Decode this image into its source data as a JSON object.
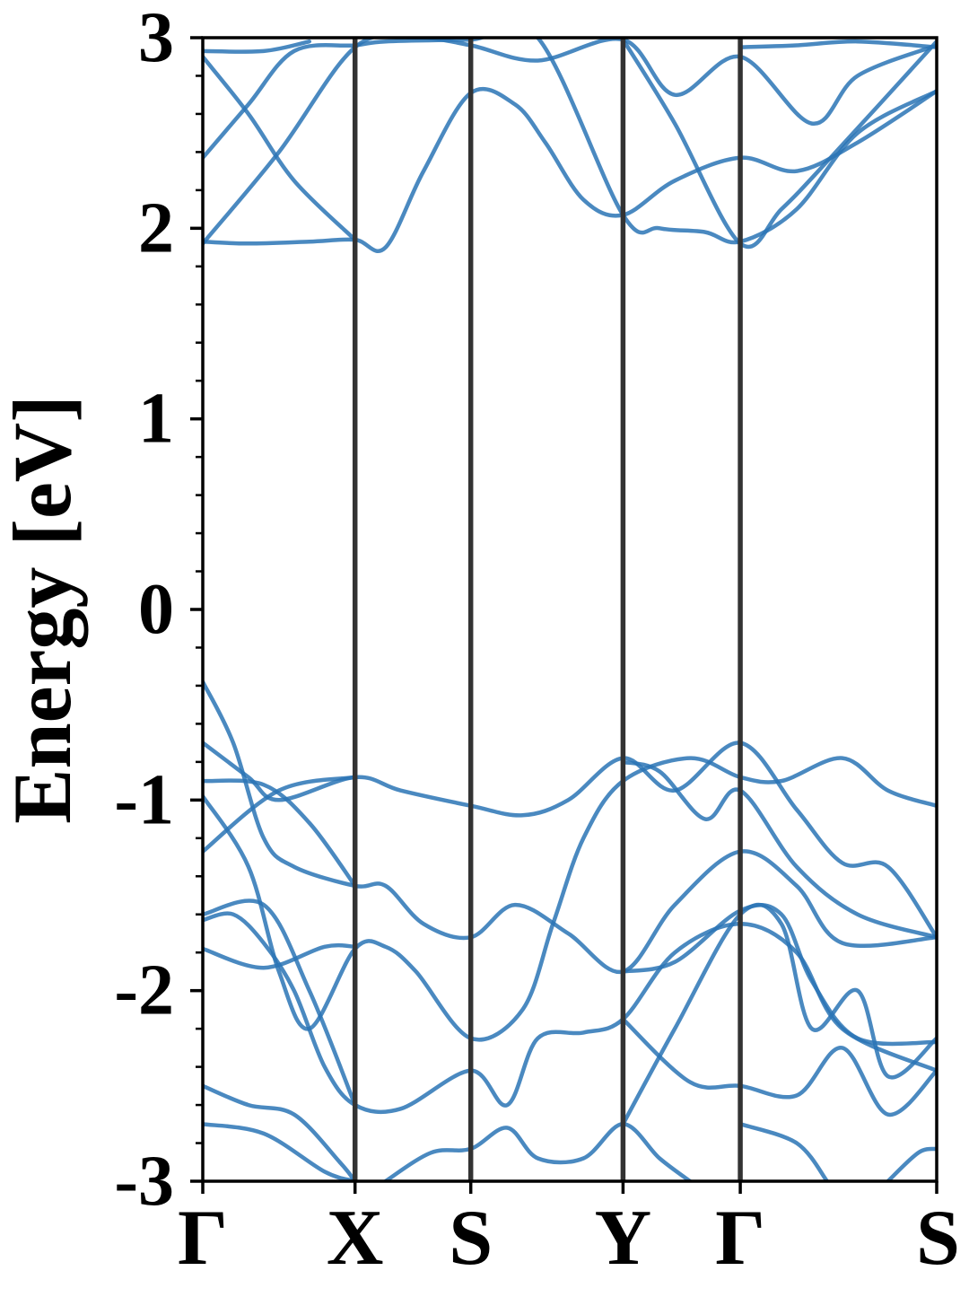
{
  "colors": {
    "band_line": "#2a74b5",
    "kpoint_line": "#333333",
    "axes": "#000000"
  },
  "chart_data": {
    "type": "line",
    "title": "",
    "xlabel": "",
    "ylabel": "Energy [eV]",
    "ylim": [
      -3,
      3
    ],
    "yticks": [
      -3,
      -2,
      -1,
      0,
      1,
      2,
      3
    ],
    "ytick_labels": [
      "-3",
      "-2",
      "-1",
      "0",
      "1",
      "2",
      "3"
    ],
    "minor_yticks_per_major": 5,
    "grid": false,
    "legend": "none",
    "x_unit": "k-path distance (Γ = 0, end S = 4.82)",
    "kpoints": [
      {
        "label": "Γ",
        "x": 0.0
      },
      {
        "label": "X",
        "x": 1.0
      },
      {
        "label": "S",
        "x": 1.76
      },
      {
        "label": "Y",
        "x": 2.76
      },
      {
        "label": "Γ",
        "x": 3.53
      },
      {
        "label": "S",
        "x": 4.82
      }
    ],
    "series": [
      {
        "values": [
          [
            0.0,
            1.93
          ],
          [
            0.3,
            1.92
          ],
          [
            0.7,
            1.93
          ],
          [
            1.0,
            1.94
          ],
          [
            1.2,
            1.9
          ],
          [
            1.45,
            2.3
          ],
          [
            1.76,
            2.71
          ],
          [
            2.05,
            2.65
          ],
          [
            2.25,
            2.45
          ],
          [
            2.5,
            2.15
          ],
          [
            2.76,
            2.07
          ],
          [
            3.1,
            2.25
          ],
          [
            3.53,
            2.37
          ],
          [
            3.9,
            2.3
          ],
          [
            4.3,
            2.45
          ],
          [
            4.82,
            2.72
          ]
        ]
      },
      {
        "values": [
          [
            0.0,
            1.92
          ],
          [
            0.5,
            2.4
          ],
          [
            1.0,
            2.95
          ],
          [
            1.4,
            3.0
          ],
          [
            1.76,
            2.96
          ],
          [
            2.2,
            2.88
          ],
          [
            2.76,
            2.99
          ],
          [
            3.1,
            2.7
          ],
          [
            3.53,
            2.9
          ],
          [
            4.0,
            2.55
          ],
          [
            4.3,
            2.8
          ],
          [
            4.82,
            2.96
          ]
        ]
      },
      {
        "values": [
          [
            0.0,
            2.37
          ],
          [
            0.3,
            2.65
          ],
          [
            0.6,
            2.93
          ],
          [
            1.0,
            2.96
          ],
          [
            1.2,
            2.98
          ],
          [
            1.76,
            2.99
          ],
          [
            2.2,
            3.0
          ],
          [
            2.76,
            2.07
          ],
          [
            3.0,
            2.0
          ],
          [
            3.3,
            1.98
          ],
          [
            3.53,
            1.93
          ],
          [
            3.9,
            2.1
          ],
          [
            4.3,
            2.5
          ],
          [
            4.82,
            2.72
          ]
        ]
      },
      {
        "values": [
          [
            0.0,
            2.9
          ],
          [
            0.3,
            2.6
          ],
          [
            0.6,
            2.25
          ],
          [
            1.0,
            1.94
          ]
        ]
      },
      {
        "values": [
          [
            0.0,
            2.93
          ],
          [
            0.4,
            2.93
          ],
          [
            0.7,
            2.98
          ]
        ]
      },
      {
        "values": [
          [
            2.76,
            2.99
          ],
          [
            3.1,
            2.55
          ],
          [
            3.53,
            1.92
          ],
          [
            3.8,
            2.1
          ],
          [
            4.1,
            2.35
          ],
          [
            4.82,
            2.98
          ]
        ]
      },
      {
        "values": [
          [
            3.53,
            2.95
          ],
          [
            3.9,
            2.96
          ],
          [
            4.3,
            2.98
          ],
          [
            4.82,
            2.95
          ]
        ]
      },
      {
        "values": [
          [
            0.0,
            -0.38
          ],
          [
            0.2,
            -0.7
          ],
          [
            0.4,
            -1.2
          ],
          [
            0.6,
            -1.35
          ],
          [
            1.0,
            -1.45
          ],
          [
            1.2,
            -1.45
          ],
          [
            1.45,
            -1.65
          ],
          [
            1.76,
            -1.72
          ],
          [
            2.05,
            -1.55
          ],
          [
            2.4,
            -1.7
          ],
          [
            2.76,
            -1.9
          ],
          [
            3.1,
            -1.55
          ],
          [
            3.53,
            -1.27
          ],
          [
            3.9,
            -1.45
          ],
          [
            4.2,
            -1.75
          ],
          [
            4.82,
            -1.72
          ]
        ]
      },
      {
        "values": [
          [
            0.0,
            -0.7
          ],
          [
            0.3,
            -0.88
          ],
          [
            0.5,
            -1.0
          ],
          [
            1.0,
            -0.88
          ],
          [
            1.3,
            -0.95
          ],
          [
            1.76,
            -1.03
          ],
          [
            2.1,
            -1.08
          ],
          [
            2.4,
            -1.0
          ],
          [
            2.76,
            -0.78
          ],
          [
            3.1,
            -0.95
          ],
          [
            3.53,
            -0.7
          ],
          [
            3.9,
            -1.05
          ],
          [
            4.2,
            -1.33
          ],
          [
            4.5,
            -1.35
          ],
          [
            4.82,
            -1.72
          ]
        ]
      },
      {
        "values": [
          [
            0.0,
            -0.9
          ],
          [
            0.4,
            -0.92
          ],
          [
            0.7,
            -1.12
          ],
          [
            1.0,
            -1.45
          ]
        ]
      },
      {
        "values": [
          [
            0.0,
            -1.27
          ],
          [
            0.5,
            -0.95
          ],
          [
            1.0,
            -0.88
          ]
        ]
      },
      {
        "values": [
          [
            0.0,
            -0.98
          ],
          [
            0.3,
            -1.35
          ],
          [
            0.5,
            -1.9
          ],
          [
            0.7,
            -2.2
          ],
          [
            1.0,
            -1.78
          ],
          [
            1.2,
            -1.77
          ],
          [
            1.4,
            -1.9
          ],
          [
            1.76,
            -2.25
          ],
          [
            2.1,
            -2.1
          ],
          [
            2.3,
            -1.65
          ],
          [
            2.5,
            -1.2
          ],
          [
            2.76,
            -0.9
          ],
          [
            3.2,
            -0.78
          ],
          [
            3.53,
            -0.88
          ],
          [
            3.8,
            -0.9
          ],
          [
            4.2,
            -0.78
          ],
          [
            4.5,
            -0.95
          ],
          [
            4.82,
            -1.03
          ]
        ]
      },
      {
        "values": [
          [
            2.76,
            -0.8
          ],
          [
            3.0,
            -0.85
          ],
          [
            3.3,
            -1.1
          ],
          [
            3.53,
            -0.95
          ],
          [
            3.9,
            -1.35
          ],
          [
            4.3,
            -1.6
          ],
          [
            4.82,
            -1.72
          ]
        ]
      },
      {
        "values": [
          [
            0.0,
            -1.63
          ],
          [
            0.2,
            -1.6
          ],
          [
            0.4,
            -1.75
          ],
          [
            0.6,
            -2.0
          ],
          [
            0.8,
            -2.4
          ],
          [
            1.0,
            -2.6
          ],
          [
            1.3,
            -2.62
          ],
          [
            1.76,
            -2.42
          ],
          [
            2.0,
            -2.6
          ],
          [
            2.2,
            -2.25
          ],
          [
            2.5,
            -2.22
          ],
          [
            2.76,
            -2.15
          ],
          [
            3.1,
            -1.8
          ],
          [
            3.53,
            -1.65
          ],
          [
            3.9,
            -1.8
          ],
          [
            4.2,
            -2.2
          ],
          [
            4.82,
            -2.42
          ]
        ]
      },
      {
        "values": [
          [
            0.0,
            -1.6
          ],
          [
            0.4,
            -1.55
          ],
          [
            0.7,
            -2.0
          ],
          [
            1.0,
            -2.6
          ]
        ]
      },
      {
        "values": [
          [
            0.0,
            -1.78
          ],
          [
            0.4,
            -1.88
          ],
          [
            0.8,
            -1.77
          ],
          [
            1.0,
            -1.77
          ]
        ]
      },
      {
        "values": [
          [
            0.0,
            -2.5
          ],
          [
            0.3,
            -2.6
          ],
          [
            0.6,
            -2.65
          ],
          [
            0.9,
            -2.9
          ],
          [
            1.0,
            -3.0
          ]
        ]
      },
      {
        "values": [
          [
            0.0,
            -2.7
          ],
          [
            0.4,
            -2.75
          ],
          [
            0.8,
            -2.95
          ],
          [
            1.0,
            -3.0
          ]
        ]
      },
      {
        "values": [
          [
            1.2,
            -3.0
          ],
          [
            1.5,
            -2.85
          ],
          [
            1.76,
            -2.83
          ],
          [
            2.0,
            -2.72
          ],
          [
            2.2,
            -2.88
          ],
          [
            2.5,
            -2.88
          ],
          [
            2.76,
            -2.7
          ],
          [
            3.0,
            -2.88
          ],
          [
            3.2,
            -3.0
          ]
        ]
      },
      {
        "values": [
          [
            2.76,
            -2.7
          ],
          [
            3.1,
            -2.2
          ],
          [
            3.53,
            -1.6
          ],
          [
            3.8,
            -1.65
          ],
          [
            4.0,
            -2.2
          ],
          [
            4.3,
            -2.0
          ],
          [
            4.5,
            -2.45
          ],
          [
            4.82,
            -2.25
          ]
        ]
      },
      {
        "values": [
          [
            2.76,
            -1.9
          ],
          [
            3.1,
            -1.85
          ],
          [
            3.53,
            -1.58
          ],
          [
            3.8,
            -1.6
          ],
          [
            4.0,
            -1.95
          ],
          [
            4.3,
            -2.25
          ],
          [
            4.82,
            -2.27
          ]
        ]
      },
      {
        "values": [
          [
            2.76,
            -2.15
          ],
          [
            3.2,
            -2.48
          ],
          [
            3.53,
            -2.5
          ],
          [
            3.9,
            -2.55
          ],
          [
            4.2,
            -2.3
          ],
          [
            4.5,
            -2.65
          ],
          [
            4.82,
            -2.42
          ]
        ]
      },
      {
        "values": [
          [
            3.53,
            -2.7
          ],
          [
            3.9,
            -2.8
          ],
          [
            4.1,
            -3.0
          ]
        ]
      },
      {
        "values": [
          [
            4.5,
            -3.0
          ],
          [
            4.7,
            -2.85
          ],
          [
            4.82,
            -2.83
          ]
        ]
      }
    ]
  }
}
